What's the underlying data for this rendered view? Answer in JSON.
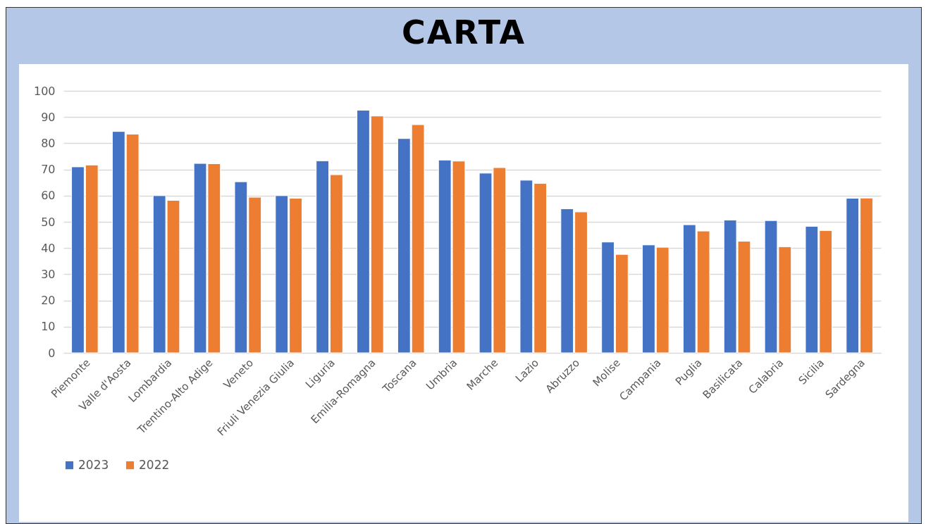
{
  "chart_data": {
    "type": "bar",
    "title": "CARTA",
    "categories": [
      "Piemonte",
      "Valle d'Aosta",
      "Lombardia",
      "Trentino-Alto Adige",
      "Veneto",
      "Friuli Venezia Giulia",
      "Liguria",
      "Emilia-Romagna",
      "Toscana",
      "Umbria",
      "Marche",
      "Lazio",
      "Abruzzo",
      "Molise",
      "Campania",
      "Puglia",
      "Basilicata",
      "Calabria",
      "Sicilia",
      "Sardegna"
    ],
    "series": [
      {
        "name": "2023",
        "color": "#4472c4",
        "values": [
          71,
          84.5,
          60,
          72.3,
          65.3,
          60,
          73.3,
          92.6,
          81.8,
          73.6,
          68.6,
          65.9,
          55,
          42.3,
          41.2,
          48.9,
          50.7,
          50.5,
          48.3,
          59
        ]
      },
      {
        "name": "2022",
        "color": "#ed7d31",
        "values": [
          71.7,
          83.5,
          58.2,
          72.2,
          59.4,
          59,
          68,
          90.4,
          87.1,
          73.2,
          70.7,
          64.7,
          53.8,
          37.6,
          40.3,
          46.5,
          42.6,
          40.5,
          46.7,
          59.1
        ]
      }
    ],
    "ylim": [
      0,
      100
    ],
    "yticks": [
      0,
      10,
      20,
      30,
      40,
      50,
      60,
      70,
      80,
      90,
      100
    ],
    "grid": "y",
    "legend": "bottom"
  }
}
